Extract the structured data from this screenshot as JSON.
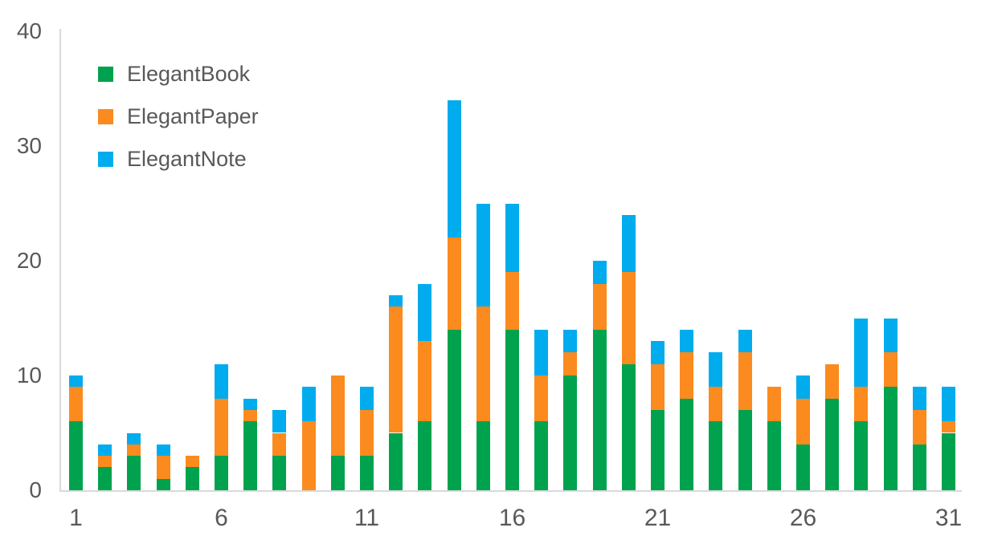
{
  "chart": {
    "background_color": "#ffffff",
    "axis_color": "#d9d9d9",
    "label_color": "#595959"
  },
  "chart_data": {
    "type": "bar",
    "stacked": true,
    "title": "",
    "xlabel": "",
    "ylabel": "",
    "x": [
      1,
      2,
      3,
      4,
      5,
      6,
      7,
      8,
      9,
      10,
      11,
      12,
      13,
      14,
      15,
      16,
      17,
      18,
      19,
      20,
      21,
      22,
      23,
      24,
      25,
      26,
      27,
      28,
      29,
      30,
      31
    ],
    "series": [
      {
        "name": "ElegantBook",
        "color": "#00a24e",
        "values": [
          6,
          2,
          3,
          1,
          2,
          3,
          6,
          3,
          0,
          3,
          3,
          5,
          6,
          14,
          6,
          14,
          6,
          10,
          14,
          11,
          7,
          8,
          6,
          7,
          6,
          4,
          8,
          6,
          9,
          4,
          5
        ]
      },
      {
        "name": "ElegantPaper",
        "color": "#fb8b1e",
        "values": [
          3,
          1,
          1,
          2,
          1,
          5,
          1,
          2,
          6,
          7,
          4,
          11,
          7,
          8,
          10,
          5,
          4,
          2,
          4,
          8,
          4,
          4,
          3,
          5,
          3,
          4,
          3,
          3,
          3,
          3,
          1
        ]
      },
      {
        "name": "ElegantNote",
        "color": "#00acee",
        "values": [
          1,
          1,
          1,
          1,
          0,
          3,
          1,
          2,
          3,
          0,
          2,
          1,
          5,
          12,
          9,
          6,
          4,
          2,
          2,
          5,
          2,
          2,
          3,
          2,
          0,
          2,
          0,
          6,
          3,
          2,
          3
        ]
      }
    ],
    "totals": [
      10,
      4,
      5,
      4,
      3,
      11,
      8,
      7,
      9,
      10,
      9,
      17,
      18,
      34,
      25,
      25,
      14,
      14,
      20,
      24,
      13,
      14,
      12,
      14,
      9,
      10,
      11,
      15,
      15,
      9,
      9
    ],
    "ylim": [
      0,
      40
    ],
    "yticks": [
      0,
      10,
      20,
      30,
      40
    ],
    "xtick_labels": [
      1,
      6,
      11,
      16,
      21,
      26,
      31
    ],
    "grid": false,
    "legend_position": "top-left"
  },
  "legend": {
    "items": [
      {
        "label": "ElegantBook"
      },
      {
        "label": "ElegantPaper"
      },
      {
        "label": "ElegantNote"
      }
    ]
  }
}
